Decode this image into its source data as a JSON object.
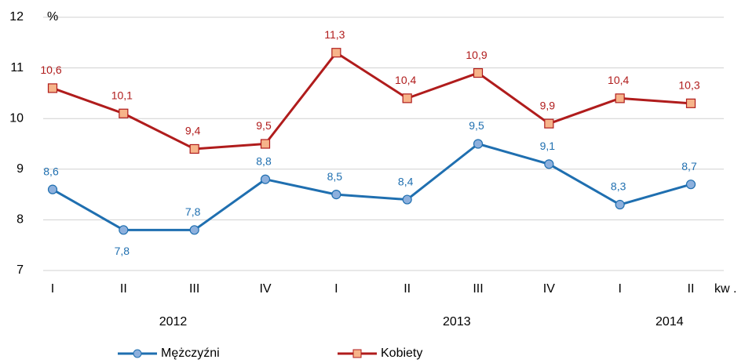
{
  "chart_data": {
    "type": "line",
    "y_label": "%",
    "x_label": "kw .",
    "categories": [
      "I",
      "II",
      "III",
      "IV",
      "I",
      "II",
      "III",
      "IV",
      "I",
      "II"
    ],
    "groups": [
      {
        "label": "2012",
        "size": 4
      },
      {
        "label": "2013",
        "size": 4
      },
      {
        "label": "2014",
        "size": 2
      }
    ],
    "series": [
      {
        "name": "Mężczyźni",
        "color": "#1f6fb0",
        "marker": "circle",
        "marker_fill": "#8db0dd",
        "values": [
          8.6,
          7.8,
          7.8,
          8.8,
          8.5,
          8.4,
          9.5,
          9.1,
          8.3,
          8.7
        ],
        "value_labels": [
          "8,6",
          "7,8",
          "7,8",
          "8,8",
          "8,5",
          "8,4",
          "9,5",
          "9,1",
          "8,3",
          "8,7"
        ]
      },
      {
        "name": "Kobiety",
        "color": "#b01c1c",
        "marker": "square",
        "marker_fill": "#f6b48a",
        "values": [
          10.6,
          10.1,
          9.4,
          9.5,
          11.3,
          10.4,
          10.9,
          9.9,
          10.4,
          10.3
        ],
        "value_labels": [
          "10,6",
          "10,1",
          "9,4",
          "9,5",
          "11,3",
          "10,4",
          "10,9",
          "9,9",
          "10,4",
          "10,3"
        ]
      }
    ],
    "ylim": [
      7,
      12
    ],
    "yticks": [
      7,
      8,
      9,
      10,
      11,
      12
    ],
    "grid": true
  }
}
